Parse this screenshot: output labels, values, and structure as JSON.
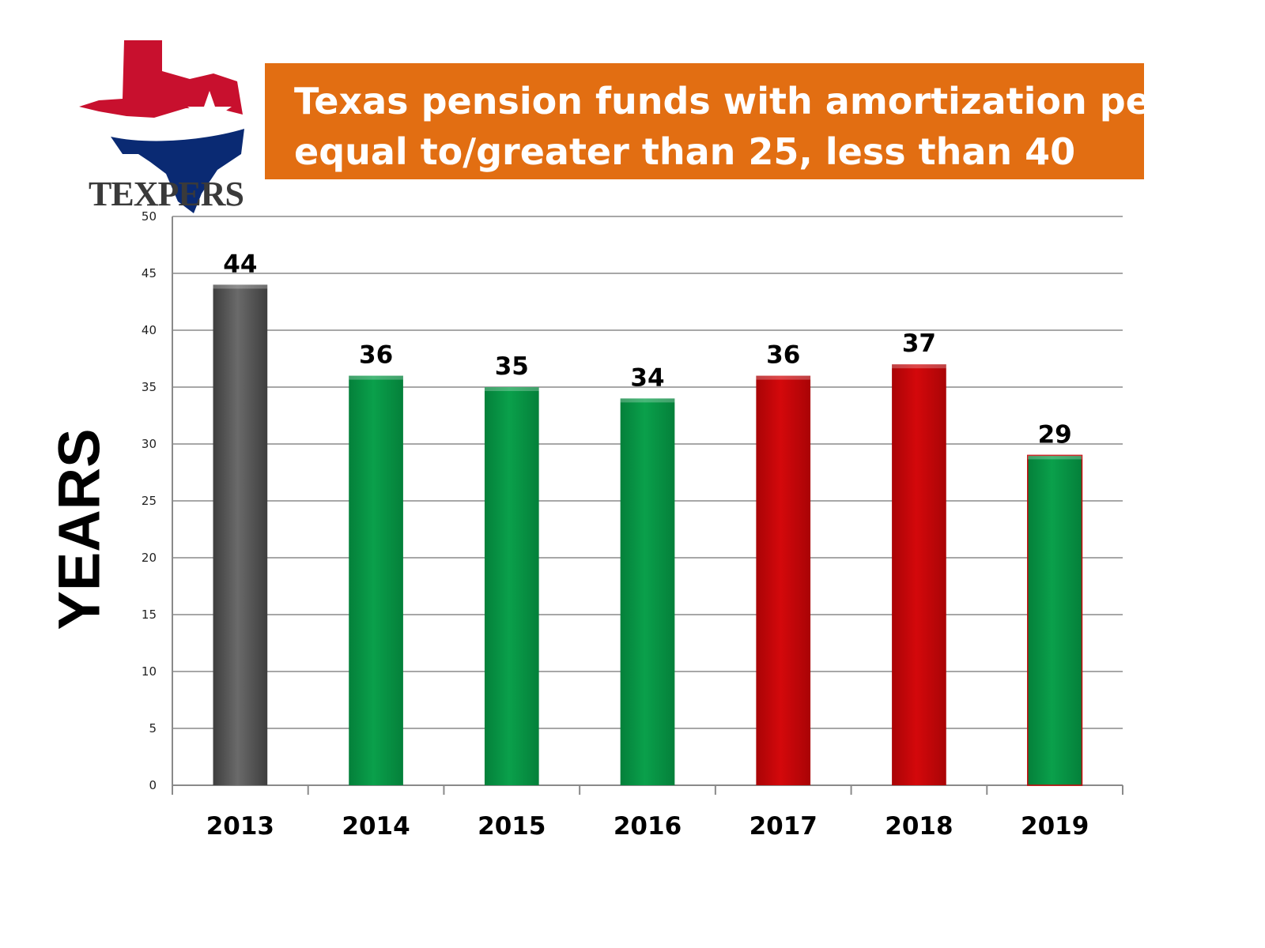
{
  "logo": {
    "text": "TEXPERS",
    "icon": "texas-flag-map-icon"
  },
  "title": {
    "line1": "Texas pension funds with amortization periods",
    "line2": "equal to/greater than 25, less than 40"
  },
  "colors": {
    "title_bg": "#e26e12",
    "gray": "#555555",
    "green": "#079444",
    "red": "#c80508",
    "grid": "#8a8a8a"
  },
  "chart_data": {
    "type": "bar",
    "ylabel": "YEARS",
    "xlabel": "",
    "ylim": [
      0,
      50
    ],
    "yticks": [
      0,
      5,
      10,
      15,
      20,
      25,
      30,
      35,
      40,
      45,
      50
    ],
    "grid": true,
    "categories": [
      "2013",
      "2014",
      "2015",
      "2016",
      "2017",
      "2018",
      "2019"
    ],
    "values": [
      44,
      36,
      35,
      34,
      36,
      37,
      29
    ],
    "bar_colors": [
      "gray",
      "green",
      "green",
      "green",
      "red",
      "red",
      "green"
    ],
    "data_labels": [
      "44",
      "36",
      "35",
      "34",
      "36",
      "37",
      "29"
    ]
  }
}
